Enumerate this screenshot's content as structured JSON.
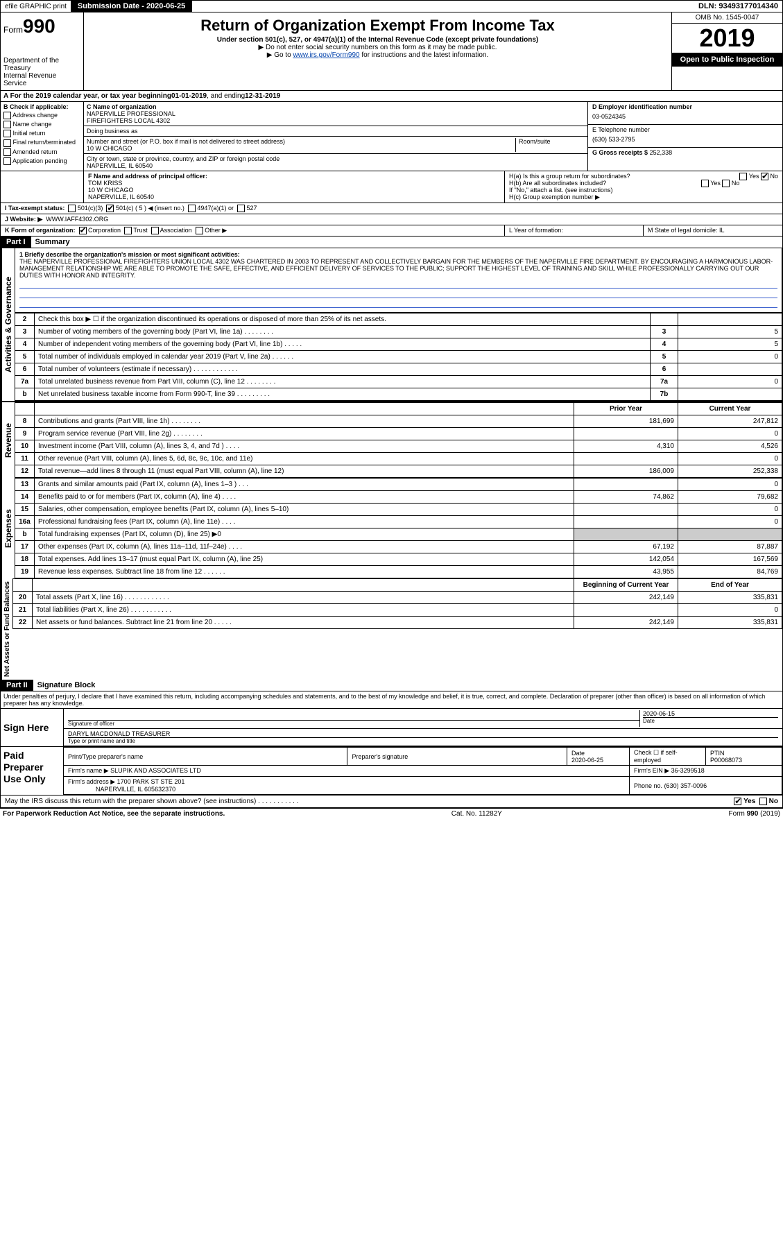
{
  "top": {
    "efile": "efile GRAPHIC print",
    "submission": "Submission Date - 2020-06-25",
    "dln": "DLN: 93493177014340"
  },
  "header": {
    "form_prefix": "Form",
    "form_number": "990",
    "dept1": "Department of the Treasury",
    "dept2": "Internal Revenue Service",
    "title": "Return of Organization Exempt From Income Tax",
    "subtitle": "Under section 501(c), 527, or 4947(a)(1) of the Internal Revenue Code (except private foundations)",
    "note1": "▶ Do not enter social security numbers on this form as it may be made public.",
    "note2_prefix": "▶ Go to ",
    "note2_link": "www.irs.gov/Form990",
    "note2_suffix": " for instructions and the latest information.",
    "omb": "OMB No. 1545-0047",
    "year": "2019",
    "open": "Open to Public Inspection"
  },
  "rowA": {
    "label": "A  For the 2019 calendar year, or tax year beginning ",
    "begin": "01-01-2019",
    "mid": " , and ending ",
    "end": "12-31-2019"
  },
  "B": {
    "heading": "B Check if applicable:",
    "opts": [
      "Address change",
      "Name change",
      "Initial return",
      "Final return/terminated",
      "Amended return",
      "Application pending"
    ]
  },
  "C": {
    "name_label": "C Name of organization",
    "name1": "NAPERVILLE PROFESSIONAL",
    "name2": "FIREFIGHTERS LOCAL 4302",
    "dba_label": "Doing business as",
    "street_label": "Number and street (or P.O. box if mail is not delivered to street address)",
    "street": "10 W CHICAGO",
    "room_label": "Room/suite",
    "city_label": "City or town, state or province, country, and ZIP or foreign postal code",
    "city": "NAPERVILLE, IL  60540"
  },
  "D": {
    "label": "D Employer identification number",
    "value": "03-0524345"
  },
  "E": {
    "label": "E Telephone number",
    "value": "(630) 533-2795"
  },
  "G": {
    "label": "G Gross receipts $",
    "value": "252,338"
  },
  "F": {
    "label": "F  Name and address of principal officer:",
    "name": "TOM KRISS",
    "addr1": "10 W CHICAGO",
    "addr2": "NAPERVILLE, IL  60540"
  },
  "H": {
    "a": "H(a)  Is this a group return for subordinates?",
    "a_yes": "Yes",
    "a_no": "No",
    "b": "H(b)  Are all subordinates included?",
    "b_yes": "Yes",
    "b_no": "No",
    "b_note": "If \"No,\" attach a list. (see instructions)",
    "c": "H(c)  Group exemption number ▶"
  },
  "I": {
    "label": "I  Tax-exempt status:",
    "o1": "501(c)(3)",
    "o2": "501(c) ( 5 ) ◀ (insert no.)",
    "o3": "4947(a)(1) or",
    "o4": "527"
  },
  "J": {
    "label": "J  Website: ▶",
    "value": "WWW.IAFF4302.ORG"
  },
  "K": {
    "label": "K Form of organization:",
    "opts": [
      "Corporation",
      "Trust",
      "Association",
      "Other ▶"
    ]
  },
  "L": {
    "label": "L Year of formation:"
  },
  "M": {
    "label": "M State of legal domicile: IL"
  },
  "part1": {
    "header": "Part I",
    "title": "Summary",
    "line1_label": "1  Briefly describe the organization's mission or most significant activities:",
    "mission": "THE NAPERVILLE PROFESSIONAL FIREFIGHTERS UNION LOCAL 4302 WAS CHARTERED IN 2003 TO REPRESENT AND COLLECTIVELY BARGAIN FOR THE MEMBERS OF THE NAPERVILLE FIRE DEPARTMENT. BY ENCOURAGING A HARMONIOUS LABOR-MANAGEMENT RELATIONSHIP WE ARE ABLE TO PROMOTE THE SAFE, EFFECTIVE, AND EFFICIENT DELIVERY OF SERVICES TO THE PUBLIC; SUPPORT THE HIGHEST LEVEL OF TRAINING AND SKILL WHILE PROFESSIONALLY CARRYING OUT OUR DUTIES WITH HONOR AND INTEGRITY.",
    "vlabel_gov": "Activities & Governance",
    "vlabel_rev": "Revenue",
    "vlabel_exp": "Expenses",
    "vlabel_net": "Net Assets or Fund Balances",
    "gov_lines": [
      {
        "n": "2",
        "desc": "Check this box ▶ ☐ if the organization discontinued its operations or disposed of more than 25% of its net assets.",
        "box": "",
        "val": ""
      },
      {
        "n": "3",
        "desc": "Number of voting members of the governing body (Part VI, line 1a)  .    .    .    .    .    .    .    .",
        "box": "3",
        "val": "5"
      },
      {
        "n": "4",
        "desc": "Number of independent voting members of the governing body (Part VI, line 1b)  .    .    .    .    .",
        "box": "4",
        "val": "5"
      },
      {
        "n": "5",
        "desc": "Total number of individuals employed in calendar year 2019 (Part V, line 2a)  .    .    .    .    .    .",
        "box": "5",
        "val": "0"
      },
      {
        "n": "6",
        "desc": "Total number of volunteers (estimate if necessary)  .    .    .    .    .    .    .    .    .    .    .    .",
        "box": "6",
        "val": ""
      },
      {
        "n": "7a",
        "desc": "Total unrelated business revenue from Part VIII, column (C), line 12  .    .    .    .    .    .    .    .",
        "box": "7a",
        "val": "0"
      },
      {
        "n": "b",
        "desc": "Net unrelated business taxable income from Form 990-T, line 39  .    .    .    .    .    .    .    .    .",
        "box": "7b",
        "val": ""
      }
    ],
    "col_prior": "Prior Year",
    "col_current": "Current Year",
    "rev_lines": [
      {
        "n": "8",
        "desc": "Contributions and grants (Part VIII, line 1h)  .    .    .    .    .    .    .    .",
        "p": "181,699",
        "c": "247,812"
      },
      {
        "n": "9",
        "desc": "Program service revenue (Part VIII, line 2g)  .    .    .    .    .    .    .    .",
        "p": "",
        "c": "0"
      },
      {
        "n": "10",
        "desc": "Investment income (Part VIII, column (A), lines 3, 4, and 7d )  .    .    .    .",
        "p": "4,310",
        "c": "4,526"
      },
      {
        "n": "11",
        "desc": "Other revenue (Part VIII, column (A), lines 5, 6d, 8c, 9c, 10c, and 11e)",
        "p": "",
        "c": "0"
      },
      {
        "n": "12",
        "desc": "Total revenue—add lines 8 through 11 (must equal Part VIII, column (A), line 12)",
        "p": "186,009",
        "c": "252,338"
      }
    ],
    "exp_lines": [
      {
        "n": "13",
        "desc": "Grants and similar amounts paid (Part IX, column (A), lines 1–3 )  .    .    .",
        "p": "",
        "c": "0"
      },
      {
        "n": "14",
        "desc": "Benefits paid to or for members (Part IX, column (A), line 4)  .    .    .    .",
        "p": "74,862",
        "c": "79,682"
      },
      {
        "n": "15",
        "desc": "Salaries, other compensation, employee benefits (Part IX, column (A), lines 5–10)",
        "p": "",
        "c": "0"
      },
      {
        "n": "16a",
        "desc": "Professional fundraising fees (Part IX, column (A), line 11e)  .    .    .    .",
        "p": "",
        "c": "0"
      },
      {
        "n": "b",
        "desc": "Total fundraising expenses (Part IX, column (D), line 25) ▶0",
        "p": "—",
        "c": "—"
      },
      {
        "n": "17",
        "desc": "Other expenses (Part IX, column (A), lines 11a–11d, 11f–24e)  .    .    .    .",
        "p": "67,192",
        "c": "87,887"
      },
      {
        "n": "18",
        "desc": "Total expenses. Add lines 13–17 (must equal Part IX, column (A), line 25)",
        "p": "142,054",
        "c": "167,569"
      },
      {
        "n": "19",
        "desc": "Revenue less expenses. Subtract line 18 from line 12  .    .    .    .    .    .",
        "p": "43,955",
        "c": "84,769"
      }
    ],
    "col_begin": "Beginning of Current Year",
    "col_end": "End of Year",
    "net_lines": [
      {
        "n": "20",
        "desc": "Total assets (Part X, line 16)  .    .    .    .    .    .    .    .    .    .    .    .",
        "p": "242,149",
        "c": "335,831"
      },
      {
        "n": "21",
        "desc": "Total liabilities (Part X, line 26)  .    .    .    .    .    .    .    .    .    .    .",
        "p": "",
        "c": "0"
      },
      {
        "n": "22",
        "desc": "Net assets or fund balances. Subtract line 21 from line 20  .    .    .    .    .",
        "p": "242,149",
        "c": "335,831"
      }
    ]
  },
  "part2": {
    "header": "Part II",
    "title": "Signature Block",
    "perjury": "Under penalties of perjury, I declare that I have examined this return, including accompanying schedules and statements, and to the best of my knowledge and belief, it is true, correct, and complete. Declaration of preparer (other than officer) is based on all information of which preparer has any knowledge.",
    "sign_here": "Sign Here",
    "sig_officer": "Signature of officer",
    "date": "2020-06-15",
    "date_label": "Date",
    "officer_name": "DARYL MACDONALD  TREASURER",
    "officer_label": "Type or print name and title"
  },
  "preparer": {
    "left": "Paid Preparer Use Only",
    "h_name": "Print/Type preparer's name",
    "h_sig": "Preparer's signature",
    "h_date": "Date",
    "date": "2020-06-25",
    "h_check": "Check ☐ if self-employed",
    "h_ptin": "PTIN",
    "ptin": "P00068073",
    "firm_name_label": "Firm's name   ▶",
    "firm_name": "SLUPIK AND ASSOCIATES LTD",
    "firm_ein_label": "Firm's EIN ▶",
    "firm_ein": "36-3299518",
    "firm_addr_label": "Firm's address ▶",
    "firm_addr1": "1700 PARK ST STE 201",
    "firm_addr2": "NAPERVILLE, IL  605632370",
    "phone_label": "Phone no.",
    "phone": "(630) 357-0096"
  },
  "footer": {
    "discuss": "May the IRS discuss this return with the preparer shown above? (see instructions)   .    .    .    .    .    .    .    .    .    .    .",
    "yes": "Yes",
    "no": "No",
    "pra": "For Paperwork Reduction Act Notice, see the separate instructions.",
    "cat": "Cat. No. 11282Y",
    "form": "Form 990 (2019)"
  }
}
